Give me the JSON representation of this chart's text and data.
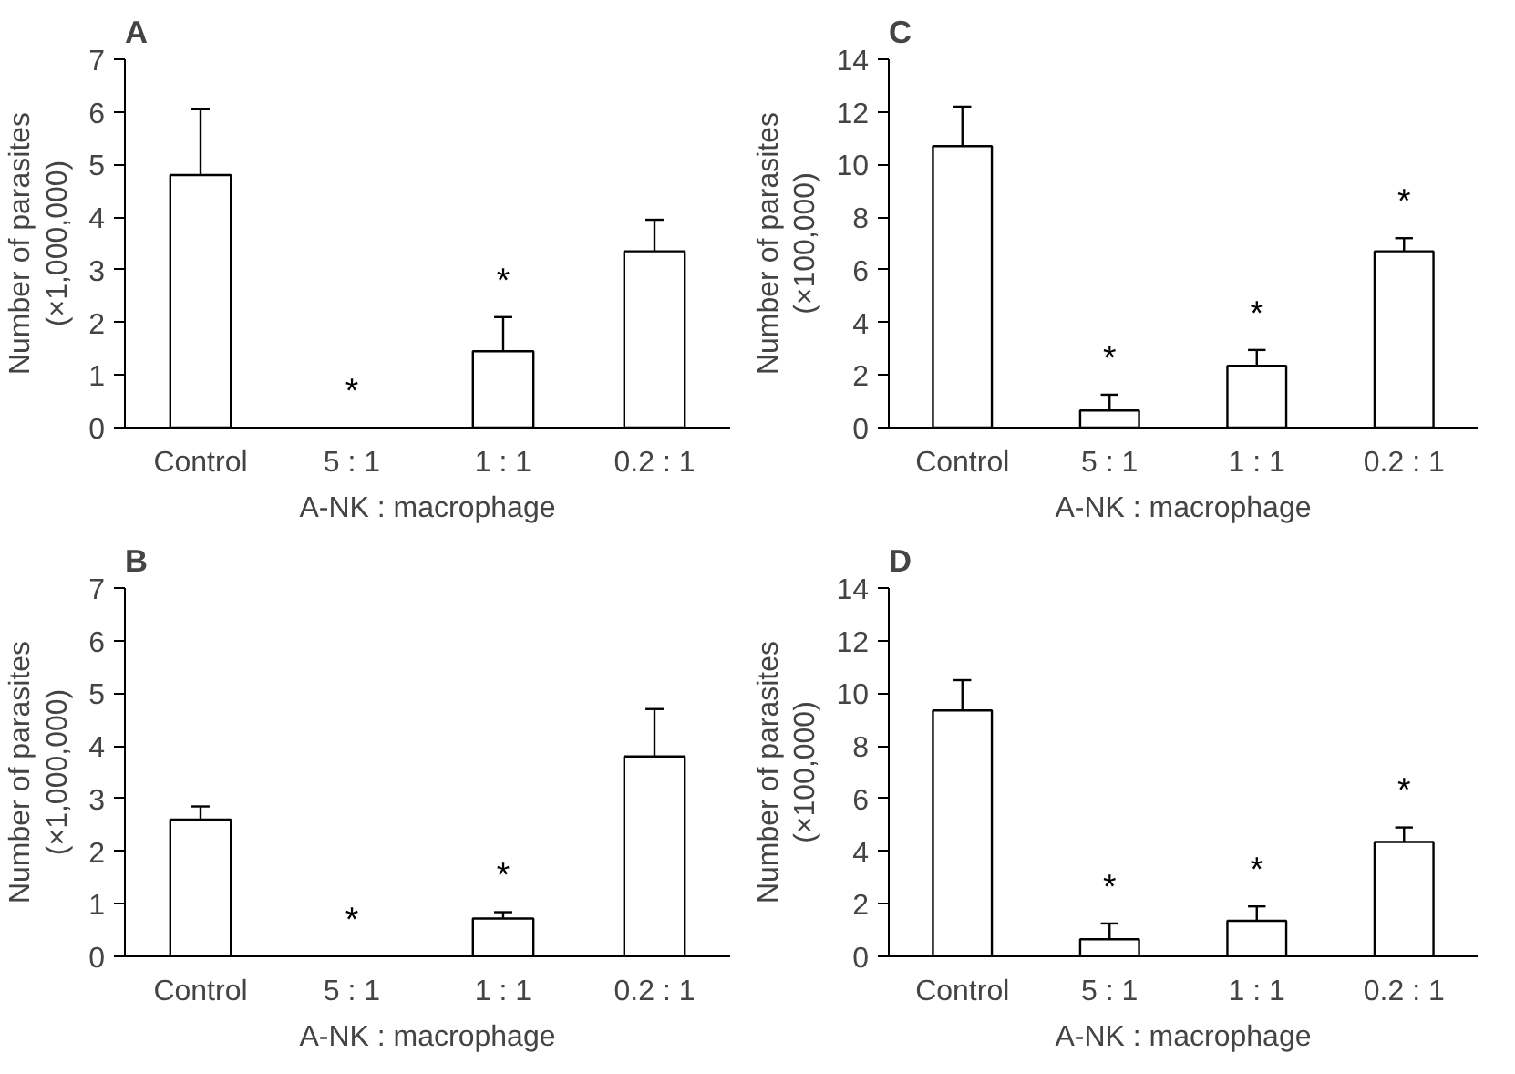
{
  "chart_data": [
    {
      "type": "bar",
      "title": "A",
      "categories": [
        "Control",
        "5 : 1",
        "1 : 1",
        "0.2 : 1"
      ],
      "values": [
        4.8,
        0,
        1.45,
        3.35
      ],
      "errors": [
        [
          4.8,
          6.05
        ],
        null,
        [
          1.45,
          2.1
        ],
        [
          3.35,
          3.95
        ]
      ],
      "value_labels": [
        null,
        "*",
        "*",
        null
      ],
      "color": "#ffffff",
      "xlabel": "A-NK : macrophage",
      "ylabel": "Number of parasites\n(×1,000,000)",
      "ylim": [
        0,
        7
      ],
      "yticks": [
        0,
        1,
        2,
        3,
        4,
        5,
        6,
        7
      ],
      "grid": false
    },
    {
      "type": "bar",
      "title": "C",
      "categories": [
        "Control",
        "5 : 1",
        "1 : 1",
        "0.2 : 1"
      ],
      "values": [
        10.7,
        0.65,
        2.35,
        6.7
      ],
      "errors": [
        [
          10.7,
          12.2
        ],
        [
          0.65,
          1.25
        ],
        [
          2.35,
          2.95
        ],
        [
          6.7,
          7.2
        ]
      ],
      "value_labels": [
        null,
        "*",
        "*",
        "*"
      ],
      "color": "#ffffff",
      "xlabel": "A-NK : macrophage",
      "ylabel": "Number of parasites\n(×100,000)",
      "ylim": [
        0,
        14
      ],
      "yticks": [
        0,
        2,
        4,
        6,
        8,
        10,
        12,
        14
      ],
      "grid": false
    },
    {
      "type": "bar",
      "title": "B",
      "categories": [
        "Control",
        "5 : 1",
        "1 : 1",
        "0.2 : 1"
      ],
      "values": [
        2.6,
        0,
        0.72,
        3.8
      ],
      "errors": [
        [
          2.6,
          2.85
        ],
        null,
        [
          0.72,
          0.84
        ],
        [
          3.8,
          4.7
        ]
      ],
      "value_labels": [
        null,
        "*",
        "*",
        null
      ],
      "color": "#ffffff",
      "xlabel": "A-NK : macrophage",
      "ylabel": "Number of parasites\n(×1,000,000)",
      "ylim": [
        0,
        7
      ],
      "yticks": [
        0,
        1,
        2,
        3,
        4,
        5,
        6,
        7
      ],
      "grid": false
    },
    {
      "type": "bar",
      "title": "D",
      "categories": [
        "Control",
        "5 : 1",
        "1 : 1",
        "0.2 : 1"
      ],
      "values": [
        9.35,
        0.65,
        1.35,
        4.35
      ],
      "errors": [
        [
          9.35,
          10.5
        ],
        [
          0.65,
          1.25
        ],
        [
          1.35,
          1.9
        ],
        [
          4.35,
          4.9
        ]
      ],
      "value_labels": [
        null,
        "*",
        "*",
        "*"
      ],
      "color": "#ffffff",
      "xlabel": "A-NK : macrophage",
      "ylabel": "Number of parasites\n(×100,000)",
      "ylim": [
        0,
        14
      ],
      "yticks": [
        0,
        2,
        4,
        6,
        8,
        10,
        12,
        14
      ],
      "grid": false
    }
  ]
}
